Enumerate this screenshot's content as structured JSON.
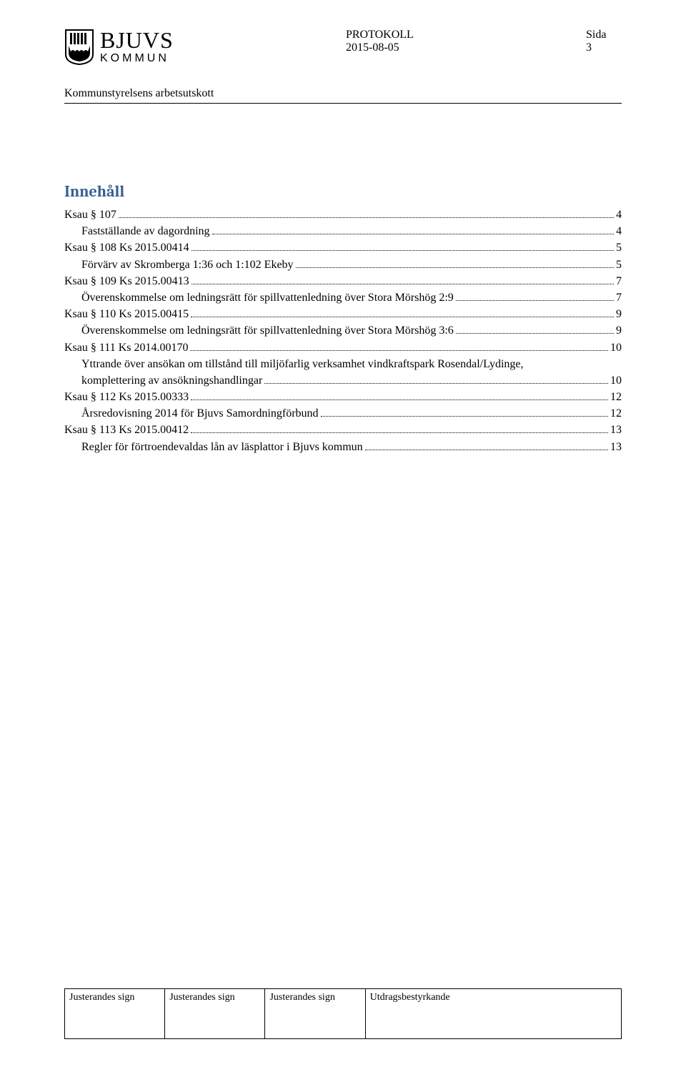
{
  "header": {
    "logo_top": "BJUVS",
    "logo_bottom": "KOMMUN",
    "protokoll": "PROTOKOLL",
    "date": "2015-08-05",
    "sida_label": "Sida",
    "page_number": "3",
    "committee": "Kommunstyrelsens arbetsutskott"
  },
  "content": {
    "title": "Innehåll",
    "toc": [
      {
        "text": "Ksau § 107",
        "page": "4",
        "indent": false
      },
      {
        "text": "Fastställande av dagordning",
        "page": "4",
        "indent": true
      },
      {
        "text": "Ksau § 108    Ks 2015.00414",
        "page": "5",
        "indent": false
      },
      {
        "text": "Förvärv av Skromberga 1:36 och 1:102 Ekeby",
        "page": "5",
        "indent": true
      },
      {
        "text": "Ksau § 109    Ks 2015.00413",
        "page": "7",
        "indent": false
      },
      {
        "text": "Överenskommelse om ledningsrätt för spillvattenledning över Stora Mörshög 2:9",
        "page": "7",
        "indent": true
      },
      {
        "text": "Ksau § 110    Ks 2015.00415",
        "page": "9",
        "indent": false
      },
      {
        "text": "Överenskommelse om ledningsrätt för spillvattenledning över Stora Mörshög 3:6",
        "page": "9",
        "indent": true
      },
      {
        "text": "Ksau § 111    Ks 2014.00170",
        "page": "10",
        "indent": false
      },
      {
        "text": "Yttrande över ansökan om tillstånd till miljöfarlig verksamhet vindkraftspark Rosendal/Lydinge,",
        "page": "",
        "indent": true,
        "nowrap_off": true
      },
      {
        "text": "komplettering av ansökningshandlingar",
        "page": "10",
        "indent": true
      },
      {
        "text": "Ksau § 112    Ks 2015.00333",
        "page": "12",
        "indent": false
      },
      {
        "text": "Årsredovisning 2014 för Bjuvs Samordningförbund",
        "page": "12",
        "indent": true
      },
      {
        "text": "Ksau § 113    Ks 2015.00412",
        "page": "13",
        "indent": false
      },
      {
        "text": "Regler för förtroendevaldas lån av läsplattor i Bjuvs kommun",
        "page": "13",
        "indent": true
      }
    ]
  },
  "footer": {
    "cells": [
      "Justerandes sign",
      "Justerandes sign",
      "Justerandes sign",
      "Utdragsbestyrkande"
    ]
  },
  "style": {
    "title_color": "#365f91",
    "text_color": "#000000",
    "background_color": "#ffffff",
    "body_fontsize": 16,
    "title_fontsize": 22
  }
}
